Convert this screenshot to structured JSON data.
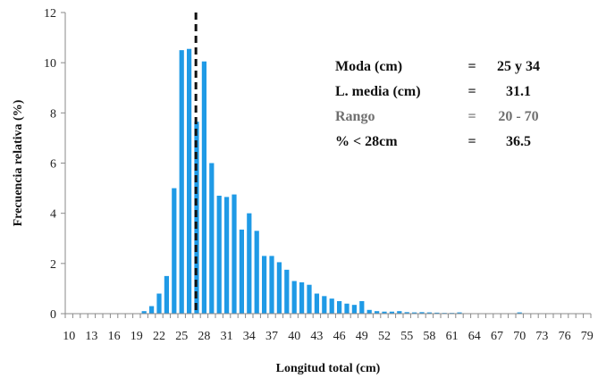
{
  "chart_data": {
    "type": "bar",
    "xlabel": "Longitud total (cm)",
    "ylabel": "Frecuencia relativa (%)",
    "xlim": [
      10,
      80
    ],
    "ylim": [
      0,
      12
    ],
    "yticks": [
      0,
      2,
      4,
      6,
      8,
      10,
      12
    ],
    "xtick_labels": [
      "10",
      "13",
      "16",
      "19",
      "22",
      "25",
      "28",
      "31",
      "34",
      "37",
      "40",
      "43",
      "46",
      "49",
      "52",
      "55",
      "58",
      "61",
      "64",
      "67",
      "70",
      "73",
      "76",
      "79"
    ],
    "grid": false,
    "bar_color": "#1f9ae6",
    "x": [
      10,
      11,
      12,
      13,
      14,
      15,
      16,
      17,
      18,
      19,
      20,
      21,
      22,
      23,
      24,
      25,
      26,
      27,
      28,
      29,
      30,
      31,
      32,
      33,
      34,
      35,
      36,
      37,
      38,
      39,
      40,
      41,
      42,
      43,
      44,
      45,
      46,
      47,
      48,
      49,
      50,
      51,
      52,
      53,
      54,
      55,
      56,
      57,
      58,
      59,
      60,
      61,
      62,
      63,
      64,
      65,
      66,
      67,
      68,
      69,
      70,
      71,
      72,
      73,
      74,
      75,
      76,
      77,
      78,
      79,
      80
    ],
    "values": [
      0,
      0,
      0,
      0,
      0,
      0,
      0,
      0,
      0,
      0,
      0.1,
      0.3,
      0.8,
      1.5,
      5.0,
      10.5,
      10.55,
      7.65,
      10.05,
      6.0,
      4.7,
      4.65,
      4.75,
      3.35,
      4.0,
      3.3,
      2.3,
      2.3,
      2.05,
      1.75,
      1.3,
      1.25,
      1.15,
      0.8,
      0.7,
      0.6,
      0.5,
      0.4,
      0.35,
      0.5,
      0.15,
      0.1,
      0.08,
      0.08,
      0.1,
      0.06,
      0.05,
      0.06,
      0.05,
      0.04,
      0.03,
      0.03,
      0.05,
      0,
      0,
      0,
      0,
      0,
      0,
      0,
      0.05,
      0,
      0,
      0,
      0,
      0,
      0,
      0,
      0,
      0,
      0
    ],
    "reference_line": {
      "x": 27.4,
      "style": "dashed",
      "color": "#111111"
    },
    "annotations": [
      {
        "label": "Moda (cm)",
        "sep": "=",
        "value": "25 y 34",
        "color": "#111111"
      },
      {
        "label": "L. media (cm)",
        "sep": "=",
        "value": "31.1",
        "color": "#111111"
      },
      {
        "label": "Rango",
        "sep": "=",
        "value": "20 - 70",
        "color": "#6f6f6f"
      },
      {
        "label": "% < 28cm",
        "sep": "=",
        "value": "36.5",
        "color": "#111111"
      }
    ]
  }
}
